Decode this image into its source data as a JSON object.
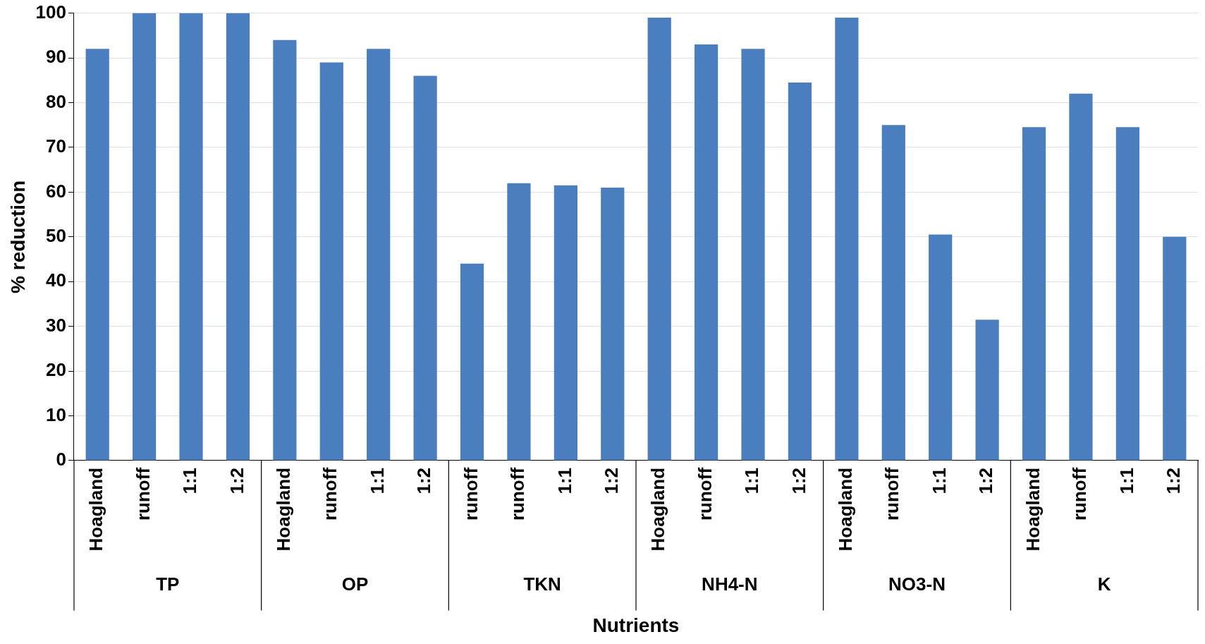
{
  "chart_data": {
    "type": "bar",
    "xlabel": "Nutrients",
    "ylabel": "% reduction",
    "categories": [
      "Hoagland",
      "runoff",
      "1:1",
      "1:2",
      "Hoagland",
      "runoff",
      "1:1",
      "1:2",
      "runoff",
      "runoff",
      "1:1",
      "1:2",
      "Hoagland",
      "runoff",
      "1:1",
      "1:2",
      "Hoagland",
      "runoff",
      "1:1",
      "1:2",
      "Hoagland",
      "runoff",
      "1:1",
      "1:2"
    ],
    "values": [
      92,
      100,
      100,
      100,
      94,
      89,
      92,
      86,
      44,
      62,
      61.5,
      61,
      99,
      93,
      92,
      84.5,
      99,
      75,
      50.5,
      31.5,
      74.5,
      82,
      74.5,
      50
    ],
    "color": "#4a7ebf",
    "ylim": [
      0,
      100
    ],
    "yticks": [
      0,
      10,
      20,
      30,
      40,
      50,
      60,
      70,
      80,
      90,
      100
    ],
    "grid": "y",
    "legend": false,
    "annotations": [
      "TP",
      "OP",
      "TKN",
      "NH4-N",
      "NO3-N",
      "K"
    ]
  }
}
